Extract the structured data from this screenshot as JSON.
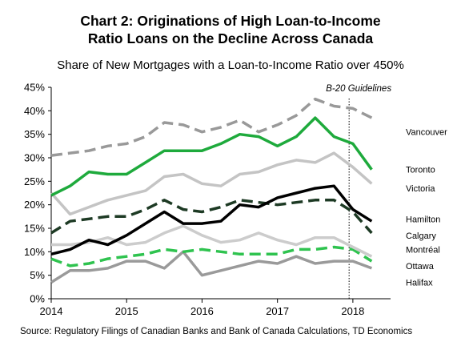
{
  "title_line1": "Chart 2: Originations of High Loan-to-Income",
  "title_line2": "Ratio Loans on the Decline Across Canada",
  "chart_data": {
    "type": "line",
    "title": "Chart 2: Originations of High Loan-to-Income Ratio Loans on the Decline Across Canada",
    "subtitle": "Share of New Mortgages with a Loan-to-Income Ratio over 450%",
    "source": "Source: Regulatory Filings of Canadian Banks and Bank of Canada Calculations, TD Economics",
    "ylim": [
      0,
      45
    ],
    "ytick_labels": [
      "0%",
      "5%",
      "10%",
      "15%",
      "20%",
      "25%",
      "30%",
      "35%",
      "40%",
      "45%"
    ],
    "ytick_values": [
      0,
      5,
      10,
      15,
      20,
      25,
      30,
      35,
      40,
      45
    ],
    "xlim": [
      2014,
      2018.5
    ],
    "xtick_labels": [
      "2014",
      "2015",
      "2016",
      "2017",
      "2018"
    ],
    "xtick_values": [
      2014,
      2015,
      2016,
      2017,
      2018
    ],
    "grid": false,
    "annotation": {
      "label": "B-20 Guidelines",
      "x": 2017.95
    },
    "x": [
      2014.0,
      2014.25,
      2014.5,
      2014.75,
      2015.0,
      2015.25,
      2015.5,
      2015.75,
      2016.0,
      2016.25,
      2016.5,
      2016.75,
      2017.0,
      2017.25,
      2017.5,
      2017.75,
      2018.0,
      2018.25
    ],
    "series": [
      {
        "name": "Vancouver",
        "color": "#999999",
        "style": "dash",
        "width": 3.5,
        "values": [
          30.5,
          31.0,
          31.5,
          32.5,
          33.0,
          34.5,
          37.5,
          37.0,
          35.5,
          36.5,
          38.0,
          35.5,
          37.0,
          39.0,
          42.5,
          41.0,
          40.5,
          38.5
        ]
      },
      {
        "name": "Toronto",
        "color": "#1eaa3c",
        "style": "solid",
        "width": 3.5,
        "values": [
          22.0,
          24.0,
          27.0,
          26.5,
          26.5,
          29.0,
          31.5,
          31.5,
          31.5,
          33.0,
          35.0,
          34.5,
          32.5,
          34.5,
          38.5,
          34.5,
          33.0,
          27.5
        ]
      },
      {
        "name": "Victoria",
        "color": "#c4c4c4",
        "style": "solid",
        "width": 3.5,
        "values": [
          22.5,
          18.0,
          19.5,
          21.0,
          22.0,
          23.0,
          26.0,
          26.5,
          24.5,
          24.0,
          26.5,
          27.0,
          28.5,
          29.5,
          29.0,
          31.0,
          28.0,
          24.5
        ]
      },
      {
        "name": "Hamilton",
        "color": "#000000",
        "style": "solid",
        "width": 3.5,
        "values": [
          9.5,
          10.5,
          12.5,
          11.5,
          13.5,
          16.0,
          18.5,
          16.0,
          16.0,
          16.5,
          20.0,
          19.5,
          21.5,
          22.5,
          23.5,
          24.0,
          19.0,
          16.5
        ]
      },
      {
        "name": "Calgary",
        "color": "#1d3a24",
        "style": "dash",
        "width": 3.5,
        "values": [
          14.0,
          16.5,
          17.0,
          17.5,
          17.5,
          19.0,
          21.0,
          19.0,
          18.5,
          19.5,
          21.0,
          20.5,
          20.0,
          20.5,
          21.0,
          21.0,
          18.5,
          14.0
        ]
      },
      {
        "name": "Montréal",
        "color": "#cccccc",
        "style": "solid",
        "width": 3.5,
        "values": [
          11.5,
          11.5,
          12.0,
          13.0,
          11.5,
          12.0,
          14.0,
          15.5,
          13.5,
          12.0,
          12.5,
          14.0,
          12.5,
          11.5,
          13.0,
          13.0,
          11.0,
          9.0
        ]
      },
      {
        "name": "Ottawa",
        "color": "#2fc34f",
        "style": "dash",
        "width": 3.5,
        "values": [
          8.5,
          7.0,
          7.5,
          8.5,
          9.0,
          9.5,
          10.5,
          10.0,
          10.5,
          10.0,
          9.5,
          9.5,
          9.5,
          10.5,
          10.5,
          11.0,
          10.5,
          8.0
        ]
      },
      {
        "name": "Halifax",
        "color": "#9a9a9a",
        "style": "solid",
        "width": 3.5,
        "values": [
          3.5,
          6.0,
          6.0,
          6.5,
          8.0,
          8.0,
          6.5,
          10.0,
          5.0,
          6.0,
          7.0,
          8.0,
          7.5,
          9.0,
          7.5,
          8.0,
          8.0,
          6.5
        ]
      }
    ],
    "label_positions": {
      "Vancouver": 35.5,
      "Toronto": 27.5,
      "Victoria": 23.5,
      "Hamilton": 17.0,
      "Calgary": 13.5,
      "Montréal": 10.5,
      "Ottawa": 7.0,
      "Halifax": 3.5
    }
  }
}
